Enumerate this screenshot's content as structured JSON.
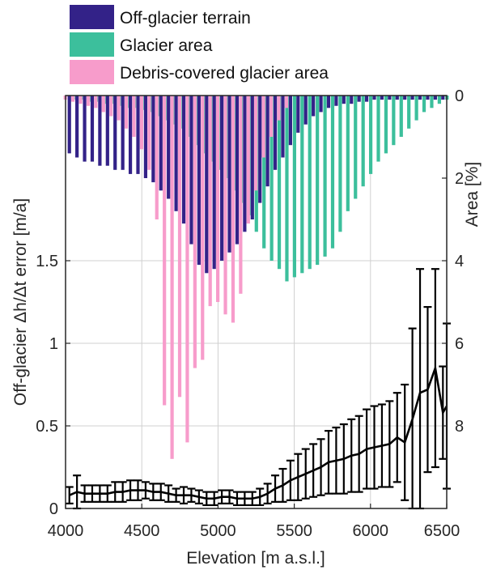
{
  "chart_data": {
    "type": "bar+line",
    "xlabel": "Elevation [m a.s.l.]",
    "ylabel_left": "Off-glacier Δh/Δt error [m/a]",
    "ylabel_right": "Area [%]",
    "xlim": [
      4000,
      6500
    ],
    "ylim_left": [
      0,
      1.5
    ],
    "ylim_right": [
      0,
      8
    ],
    "right_axis_reversed": true,
    "x_ticks": [
      "4000",
      "4500",
      "5000",
      "5500",
      "6000",
      "6500"
    ],
    "y_left_ticks": [
      "0",
      "0.5",
      "1",
      "1.5"
    ],
    "y_right_ticks": [
      "0",
      "2",
      "4",
      "6",
      "8"
    ],
    "grid": true,
    "legend": {
      "placement": "top-left",
      "entries": [
        {
          "label": "Off-glacier terrain",
          "color": "#332288"
        },
        {
          "label": "Glacier area",
          "color": "#3cbf9c"
        },
        {
          "label": "Debris-covered glacier area",
          "color": "#f79ccb"
        }
      ]
    },
    "bar_series": [
      {
        "name": "Off-glacier terrain",
        "color": "#332288",
        "x": [
          4025,
          4075,
          4125,
          4175,
          4225,
          4275,
          4325,
          4375,
          4425,
          4475,
          4525,
          4575,
          4625,
          4675,
          4725,
          4775,
          4825,
          4875,
          4925,
          4975,
          5025,
          5075,
          5125,
          5175,
          5225,
          5275,
          5325,
          5375,
          5425,
          5475,
          5525,
          5575,
          5625,
          5675,
          5725,
          5775,
          5825,
          5875,
          5925,
          5975,
          6025,
          6075,
          6125,
          6175,
          6225,
          6275,
          6325,
          6375,
          6425,
          6475
        ],
        "values": [
          1.4,
          1.5,
          1.6,
          1.6,
          1.7,
          1.7,
          1.8,
          1.8,
          1.9,
          1.9,
          2.0,
          2.1,
          2.3,
          2.5,
          2.8,
          3.1,
          3.6,
          4.1,
          4.3,
          4.2,
          4.0,
          3.8,
          3.6,
          3.3,
          3.0,
          2.6,
          2.2,
          1.8,
          1.5,
          1.2,
          0.9,
          0.7,
          0.5,
          0.4,
          0.3,
          0.25,
          0.2,
          0.2,
          0.15,
          0.15,
          0.1,
          0.1,
          0.1,
          0.1,
          0.1,
          0.1,
          0.1,
          0.1,
          0.1,
          0.1
        ]
      },
      {
        "name": "Glacier area",
        "color": "#3cbf9c",
        "x": [
          4025,
          4075,
          4125,
          4175,
          4225,
          4275,
          4325,
          4375,
          4425,
          4475,
          4525,
          4575,
          4625,
          4675,
          4725,
          4775,
          4825,
          4875,
          4925,
          4975,
          5025,
          5075,
          5125,
          5175,
          5225,
          5275,
          5325,
          5375,
          5425,
          5475,
          5525,
          5575,
          5625,
          5675,
          5725,
          5775,
          5825,
          5875,
          5925,
          5975,
          6025,
          6075,
          6125,
          6175,
          6225,
          6275,
          6325,
          6375,
          6425,
          6475
        ],
        "values": [
          0.1,
          0.1,
          0.15,
          0.15,
          0.2,
          0.2,
          0.25,
          0.3,
          0.3,
          0.35,
          0.4,
          0.5,
          0.6,
          0.7,
          0.8,
          1.0,
          1.2,
          1.4,
          1.6,
          1.8,
          2.0,
          2.3,
          2.6,
          2.9,
          3.3,
          3.7,
          4.0,
          4.2,
          4.5,
          4.4,
          4.3,
          4.2,
          4.1,
          3.9,
          3.7,
          3.3,
          2.8,
          2.5,
          2.2,
          1.9,
          1.6,
          1.4,
          1.2,
          1.0,
          0.8,
          0.6,
          0.4,
          0.3,
          0.2,
          0.1
        ]
      },
      {
        "name": "Debris-covered glacier area",
        "color": "#f79ccb",
        "x": [
          4025,
          4075,
          4125,
          4175,
          4225,
          4275,
          4325,
          4375,
          4425,
          4475,
          4525,
          4575,
          4625,
          4675,
          4725,
          4775,
          4825,
          4875,
          4925,
          4975,
          5025,
          5075,
          5125,
          5175,
          5225,
          5275,
          5325,
          5375,
          5425,
          5475
        ],
        "values": [
          0.1,
          0.15,
          0.2,
          0.25,
          0.3,
          0.4,
          0.5,
          0.6,
          0.8,
          1.0,
          1.3,
          1.8,
          3.0,
          7.5,
          8.8,
          7.3,
          8.4,
          6.6,
          6.4,
          5.1,
          5.0,
          5.3,
          5.5,
          4.8,
          3.1,
          2.3,
          1.5,
          1.0,
          0.6,
          0.3
        ]
      }
    ],
    "line_series": {
      "name": "",
      "color": "#000000",
      "x": [
        4025,
        4075,
        4125,
        4175,
        4225,
        4275,
        4325,
        4375,
        4425,
        4475,
        4525,
        4575,
        4625,
        4675,
        4725,
        4775,
        4825,
        4875,
        4925,
        4975,
        5025,
        5075,
        5125,
        5175,
        5225,
        5275,
        5325,
        5375,
        5425,
        5475,
        5525,
        5575,
        5625,
        5675,
        5725,
        5775,
        5825,
        5875,
        5925,
        5975,
        6025,
        6075,
        6125,
        6175,
        6225,
        6275,
        6325,
        6375,
        6425,
        6475,
        6500
      ],
      "y": [
        0.08,
        0.1,
        0.09,
        0.09,
        0.09,
        0.09,
        0.1,
        0.1,
        0.11,
        0.11,
        0.11,
        0.1,
        0.1,
        0.09,
        0.08,
        0.08,
        0.08,
        0.07,
        0.06,
        0.06,
        0.07,
        0.07,
        0.06,
        0.06,
        0.06,
        0.07,
        0.09,
        0.12,
        0.14,
        0.17,
        0.19,
        0.21,
        0.23,
        0.25,
        0.28,
        0.29,
        0.3,
        0.32,
        0.33,
        0.36,
        0.37,
        0.38,
        0.39,
        0.43,
        0.4,
        0.54,
        0.7,
        0.72,
        0.85,
        0.58,
        0.62
      ],
      "err": [
        0.05,
        0.1,
        0.05,
        0.05,
        0.05,
        0.05,
        0.06,
        0.06,
        0.06,
        0.06,
        0.05,
        0.05,
        0.05,
        0.05,
        0.04,
        0.05,
        0.04,
        0.04,
        0.04,
        0.04,
        0.04,
        0.04,
        0.04,
        0.04,
        0.04,
        0.05,
        0.06,
        0.08,
        0.1,
        0.12,
        0.14,
        0.15,
        0.16,
        0.17,
        0.19,
        0.2,
        0.21,
        0.22,
        0.23,
        0.24,
        0.25,
        0.25,
        0.26,
        0.27,
        0.35,
        0.55,
        0.75,
        0.5,
        0.6,
        0.28,
        0.5
      ]
    }
  }
}
